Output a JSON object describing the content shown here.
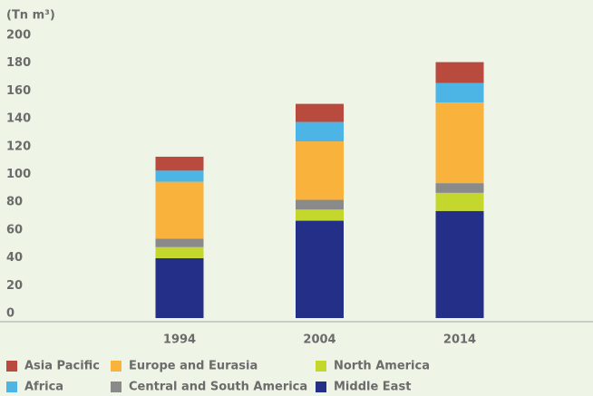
{
  "chart_data": {
    "type": "stacked_bar",
    "y_label": "(Tn m³)",
    "categories": [
      "1994",
      "2004",
      "2014"
    ],
    "series": [
      {
        "name": "Asia Pacific",
        "color": "#b84a3e",
        "values": [
          10,
          13,
          15
        ]
      },
      {
        "name": "Europe and Eurasia",
        "color": "#f9b23c",
        "values": [
          41,
          42,
          58
        ]
      },
      {
        "name": "North America",
        "color": "#c4d72c",
        "values": [
          8,
          8,
          13
        ]
      },
      {
        "name": "Africa",
        "color": "#4cb5e6",
        "values": [
          8,
          14,
          14
        ]
      },
      {
        "name": "Central and South America",
        "color": "#8a8a8a",
        "values": [
          6,
          7,
          7
        ]
      },
      {
        "name": "Middle East",
        "color": "#243087",
        "values": [
          43,
          70,
          77
        ]
      }
    ],
    "ylim": [
      0,
      200
    ],
    "yticks": [
      0,
      20,
      40,
      60,
      80,
      100,
      120,
      140,
      160,
      180,
      200
    ]
  }
}
